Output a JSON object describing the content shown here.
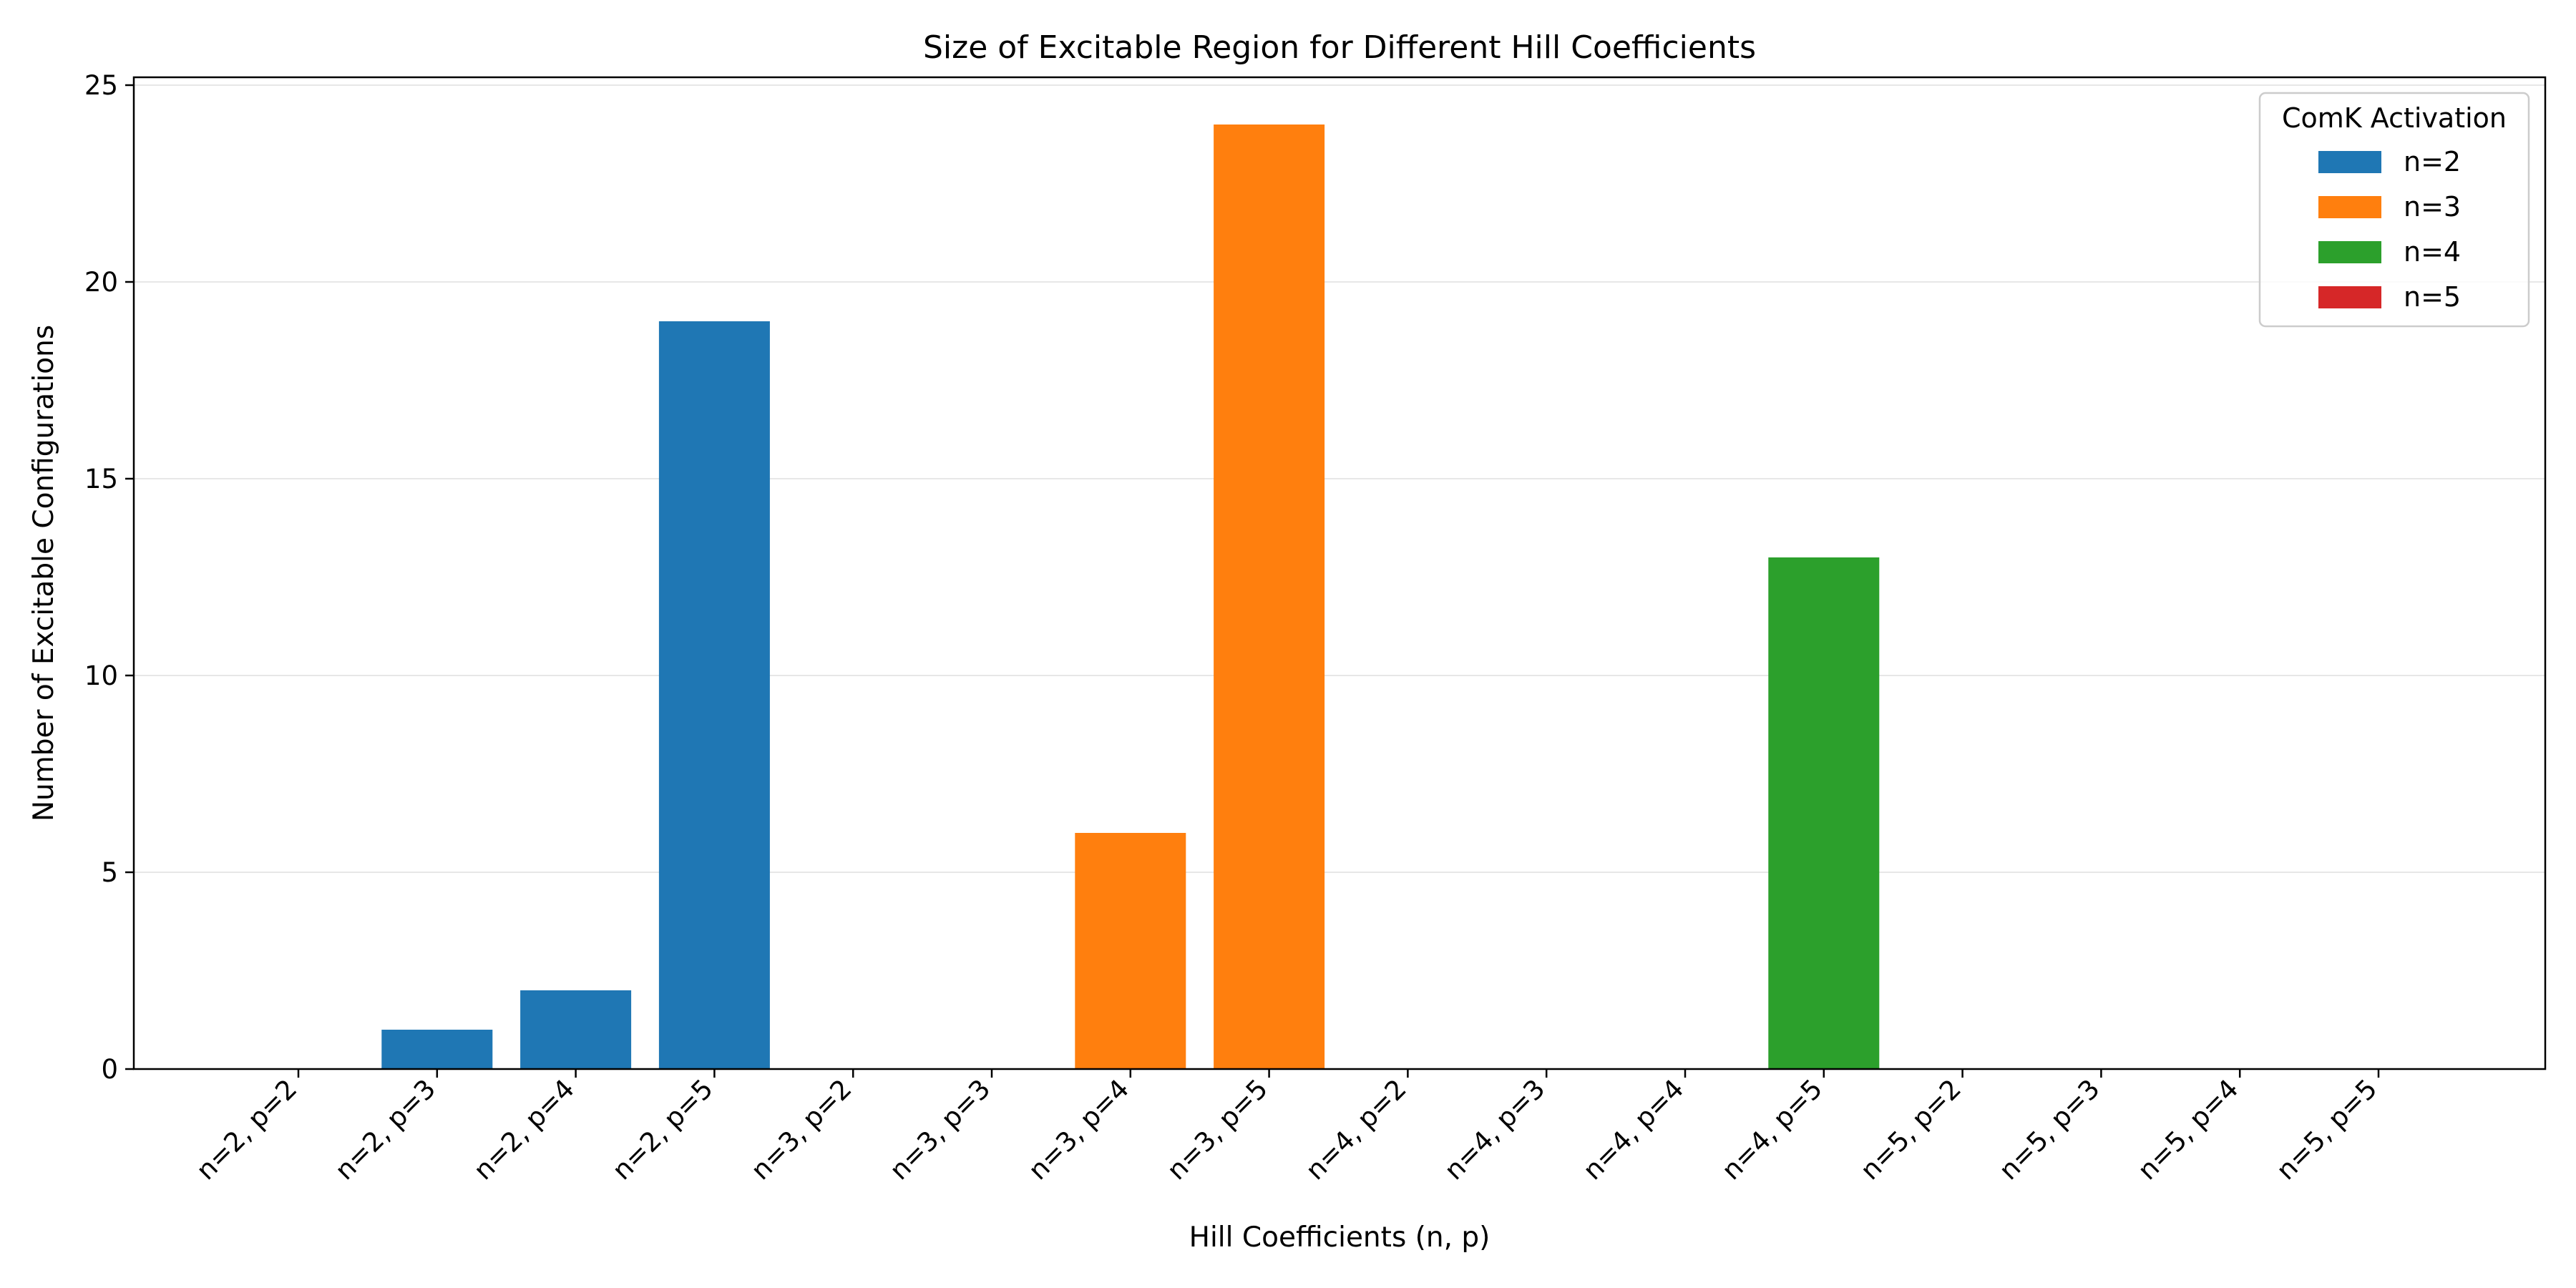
{
  "chart_data": {
    "type": "bar",
    "title": "Size of Excitable Region for Different Hill Coefficients",
    "xlabel": "Hill Coefficients (n, p)",
    "ylabel": "Number of Excitable Configurations",
    "ylim": [
      0,
      25.2
    ],
    "yticks": [
      0,
      5,
      10,
      15,
      20,
      25
    ],
    "grid": "y",
    "categories": [
      "n=2, p=2",
      "n=2, p=3",
      "n=2, p=4",
      "n=2, p=5",
      "n=3, p=2",
      "n=3, p=3",
      "n=3, p=4",
      "n=3, p=5",
      "n=4, p=2",
      "n=4, p=3",
      "n=4, p=4",
      "n=4, p=5",
      "n=5, p=2",
      "n=5, p=3",
      "n=5, p=4",
      "n=5, p=5"
    ],
    "values": [
      0,
      1,
      2,
      19,
      0,
      0,
      6,
      24,
      0,
      0,
      0,
      13,
      0,
      0,
      0,
      0
    ],
    "series_index": [
      0,
      0,
      0,
      0,
      1,
      1,
      1,
      1,
      2,
      2,
      2,
      2,
      3,
      3,
      3,
      3
    ],
    "series": [
      {
        "name": "n=2",
        "color": "#1f77b4"
      },
      {
        "name": "n=3",
        "color": "#ff7f0e"
      },
      {
        "name": "n=4",
        "color": "#2ca02c"
      },
      {
        "name": "n=5",
        "color": "#d62728"
      }
    ],
    "legend": {
      "title": "ComK Activation",
      "placement": "top-right"
    }
  }
}
